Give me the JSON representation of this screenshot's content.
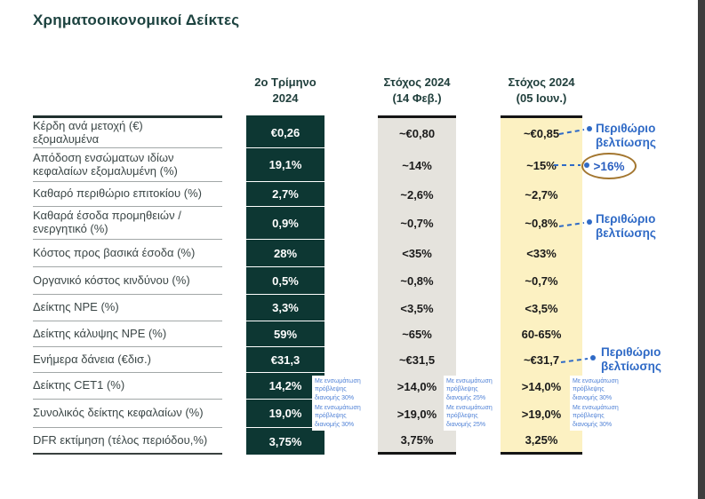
{
  "title": "Χρηματοοικονομικοί Δείκτες",
  "columns": {
    "q2": {
      "line1": "2ο Τρίμηνο",
      "line2": "2024"
    },
    "feb": {
      "line1": "Στόχος 2024",
      "line2": "(14 Φεβ.)"
    },
    "jun": {
      "line1": "Στόχος 2024",
      "line2": "(05 Ιουν.)"
    }
  },
  "rows": [
    {
      "label": [
        "Κέρδη ανά μετοχή (€)",
        "εξομαλυμένα"
      ],
      "q2": "€0,26",
      "feb": "~€0,80",
      "jun": "~€0,85"
    },
    {
      "label": [
        "Απόδοση ενσώματων ιδίων",
        "κεφαλαίων εξομαλυμένη (%)"
      ],
      "q2": "19,1%",
      "feb": "~14%",
      "jun": "~15%"
    },
    {
      "label": [
        "Καθαρό περιθώριο επιτοκίου (%)"
      ],
      "q2": "2,7%",
      "feb": "~2,6%",
      "jun": "~2,7%"
    },
    {
      "label": [
        "Καθαρά έσοδα προμηθειών /",
        "ενεργητικό (%)"
      ],
      "q2": "0,9%",
      "feb": "~0,7%",
      "jun": "~0,8%"
    },
    {
      "label": [
        "Κόστος προς βασικά έσοδα (%)"
      ],
      "q2": "28%",
      "feb": "<35%",
      "jun": "<33%"
    },
    {
      "label": [
        "Οργανικό κόστος κινδύνου (%)"
      ],
      "q2": "0,5%",
      "feb": "~0,8%",
      "jun": "~0,7%"
    },
    {
      "label": [
        "Δείκτης NPE (%)"
      ],
      "q2": "3,3%",
      "feb": "<3,5%",
      "jun": "<3,5%"
    },
    {
      "label": [
        "Δείκτης κάλυψης NPE (%)"
      ],
      "q2": "59%",
      "feb": "~65%",
      "jun": "60-65%"
    },
    {
      "label": [
        "Ενήμερα δάνεια (€δισ.)"
      ],
      "q2": "€31,3",
      "feb": "~€31,5",
      "jun": "~€31,7"
    },
    {
      "label": [
        "Δείκτης CET1 (%)"
      ],
      "q2": "14,2%",
      "feb": ">14,0%",
      "jun": ">14,0%",
      "q2_note": "Με ενσωμάτωση πρόβλεψης διανομής 30%",
      "feb_note": "Με ενσωμάτωση πρόβλεψης διανομής 25%",
      "jun_note": "Με ενσωμάτωση πρόβλεψης διανομής 30%"
    },
    {
      "label": [
        "Συνολικός δείκτης κεφαλαίων (%)"
      ],
      "q2": "19,0%",
      "feb": ">19,0%",
      "jun": ">19,0%",
      "q2_note": "Με ενσωμάτωση πρόβλεψης διανομής 30%",
      "feb_note": "Με ενσωμάτωση πρόβλεψης διανομής 25%",
      "jun_note": "Με ενσωμάτωση πρόβλεψης διανομής 30%"
    },
    {
      "label": [
        "DFR εκτίμηση (τέλος περιόδου,%)"
      ],
      "q2": "3,75%",
      "feb": "3,75%",
      "jun": "3,25%"
    }
  ],
  "annotations": [
    {
      "text": "Περιθώριο βελτίωσης",
      "row_ref": "Κέρδη ανά μετοχή"
    },
    {
      "text": ">16%",
      "row_ref": "Απόδοση ενσώματων ιδίων κεφαλαίων",
      "style": "circled"
    },
    {
      "text": "Περιθώριο βελτίωσης",
      "row_ref": "Καθαρά έσοδα προμηθειών"
    },
    {
      "text": "Περιθώριο βελτίωσης",
      "row_ref": "Ενήμερα δάνεια"
    }
  ],
  "colors": {
    "dark_column_bg": "#0d3733",
    "gray_column_bg": "#e5e3dd",
    "yellow_column_bg": "#fcf1c2",
    "annotation_blue": "#2f6ac6",
    "footnote_blue": "#4f81d6",
    "circle_brown": "#a3762f",
    "title_teal": "#1d4340",
    "right_strip_gray": "#3e3e3e"
  }
}
